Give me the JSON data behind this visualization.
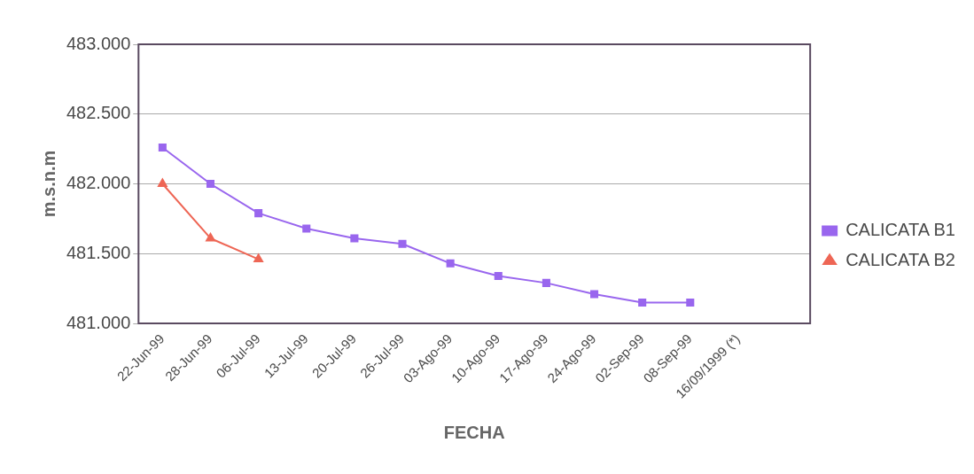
{
  "chart_data": {
    "type": "line",
    "xlabel": "FECHA",
    "ylabel": "m.s.n.m",
    "categories": [
      "22-Jun-99",
      "28-Jun-99",
      "06-Jul-99",
      "13-Jul-99",
      "20-Jul-99",
      "26-Jul-99",
      "03-Ago-99",
      "10-Ago-99",
      "17-Ago-99",
      "24-Ago-99",
      "02-Sep-99",
      "08-Sep-99",
      "16/09/1999 (*)",
      null
    ],
    "series": [
      {
        "name": "CALICATA B1",
        "color": "#9966ee",
        "marker": "square",
        "values": [
          482.26,
          482.0,
          481.79,
          481.68,
          481.61,
          481.57,
          481.43,
          481.34,
          481.29,
          481.21,
          481.15,
          481.15,
          null,
          null
        ]
      },
      {
        "name": "CALICATA B2",
        "color": "#ee6655",
        "marker": "triangle",
        "values": [
          482.0,
          481.61,
          481.46,
          null,
          null,
          null,
          null,
          null,
          null,
          null,
          null,
          null,
          null,
          null
        ]
      }
    ],
    "ylim": [
      481,
      483
    ],
    "yticks": [
      {
        "value": 481,
        "label": "481.000"
      },
      {
        "value": 481.5,
        "label": "481.500"
      },
      {
        "value": 482,
        "label": "482.000"
      },
      {
        "value": 482.5,
        "label": "482.500"
      },
      {
        "value": 483,
        "label": "483.000"
      }
    ],
    "grid": "y",
    "legend": "right",
    "line_style": "solid"
  }
}
